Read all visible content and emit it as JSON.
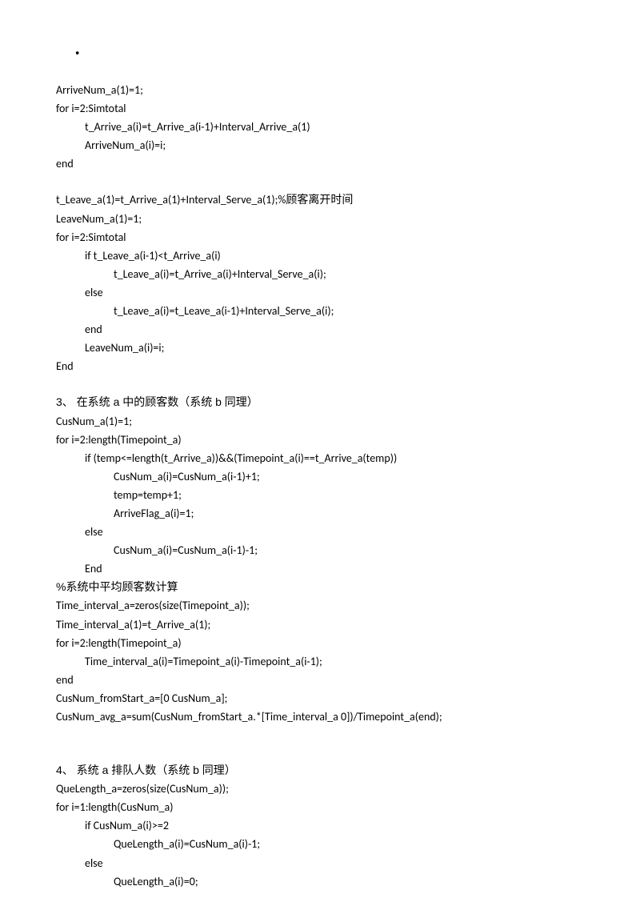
{
  "dot": "·",
  "block1": {
    "l1": "ArriveNum_a(1)=1;",
    "l2": "for i=2:Simtotal",
    "l3": "t_Arrive_a(i)=t_Arrive_a(i-1)+Interval_Arrive_a(1)",
    "l4": "ArriveNum_a(i)=i;",
    "l5": "end"
  },
  "block2": {
    "l1": "t_Leave_a(1)=t_Arrive_a(1)+Interval_Serve_a(1);%顾客离开时间",
    "l2": "LeaveNum_a(1)=1;",
    "l3": "for i=2:Simtotal",
    "l4": "if t_Leave_a(i-1)<t_Arrive_a(i)",
    "l5": "t_Leave_a(i)=t_Arrive_a(i)+Interval_Serve_a(i);",
    "l6": "else",
    "l7": "t_Leave_a(i)=t_Leave_a(i-1)+Interval_Serve_a(i);",
    "l8": "end",
    "l9": "LeaveNum_a(i)=i;",
    "l10": "End"
  },
  "block3": {
    "title": "3、 在系统 a 中的顾客数（系统 b 同理）",
    "l1": "CusNum_a(1)=1;",
    "l2": "for i=2:length(Timepoint_a)",
    "l3": "if (temp<=length(t_Arrive_a))&&(Timepoint_a(i)==t_Arrive_a(temp))",
    "l4": "CusNum_a(i)=CusNum_a(i-1)+1;",
    "l5": "temp=temp+1;",
    "l6": "ArriveFlag_a(i)=1;",
    "l7": "else",
    "l8": "CusNum_a(i)=CusNum_a(i-1)-1;",
    "l9": "End",
    "comment": "%系统中平均顾客数计算",
    "l10": "Time_interval_a=zeros(size(Timepoint_a));",
    "l11": "Time_interval_a(1)=t_Arrive_a(1);",
    "l12": "for i=2:length(Timepoint_a)",
    "l13": "Time_interval_a(i)=Timepoint_a(i)-Timepoint_a(i-1);",
    "l14": "end",
    "l15": "CusNum_fromStart_a=[0 CusNum_a];",
    "l16": "CusNum_avg_a=sum(CusNum_fromStart_a.*[Time_interval_a 0])/Timepoint_a(end);"
  },
  "block4": {
    "title": "4、 系统 a 排队人数（系统 b 同理）",
    "l1": "QueLength_a=zeros(size(CusNum_a));",
    "l2": "for i=1:length(CusNum_a)",
    "l3": "if CusNum_a(i)>=2",
    "l4": "QueLength_a(i)=CusNum_a(i)-1;",
    "l5": "else",
    "l6": "QueLength_a(i)=0;"
  }
}
